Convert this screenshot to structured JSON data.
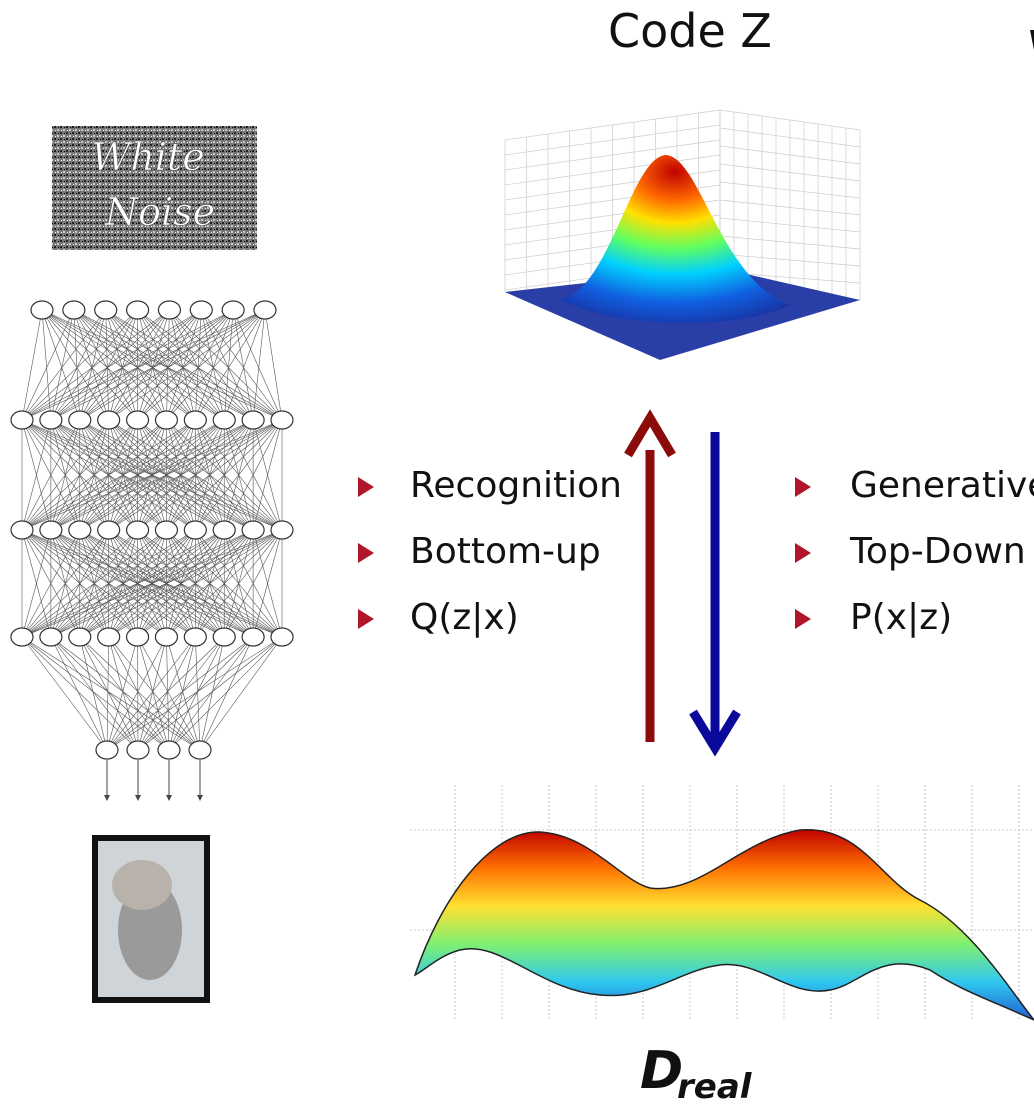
{
  "code_label": "Code Z",
  "noise_label": {
    "line1": "White",
    "line2": "Noise"
  },
  "recognition": {
    "items": [
      "Recognition",
      "Bottom-up",
      "Q(z|x)"
    ]
  },
  "generative": {
    "items": [
      "Generative",
      "Top-Down",
      "P(x|z)"
    ]
  },
  "data_label": {
    "symbol": "D",
    "subscript": "real"
  }
}
